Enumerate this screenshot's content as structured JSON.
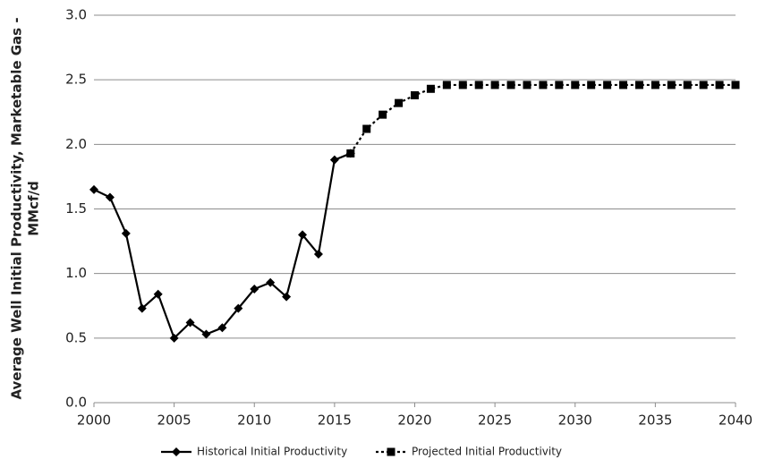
{
  "chart_data": {
    "type": "line",
    "ylabel": [
      "Average Well Initial Productivity, Marketable Gas -",
      "MMcf/d"
    ],
    "xlim": [
      2000,
      2040
    ],
    "xticks": [
      2000,
      2005,
      2010,
      2015,
      2020,
      2025,
      2030,
      2035,
      2040
    ],
    "ylim": [
      0,
      3
    ],
    "yticks": [
      {
        "value": 0,
        "label": "0.0"
      },
      {
        "value": 0.5,
        "label": "0.5"
      },
      {
        "value": 1,
        "label": "1.0"
      },
      {
        "value": 1.5,
        "label": "1.5"
      },
      {
        "value": 2,
        "label": "2.0"
      },
      {
        "value": 2.5,
        "label": "2.5"
      },
      {
        "value": 3,
        "label": "3.0"
      }
    ],
    "grid": true,
    "legend": "bottom",
    "series": [
      {
        "name": "Historical Initial Productivity",
        "color": "#000000",
        "dash": "solid",
        "marker": "diamond",
        "x": [
          2000,
          2001,
          2002,
          2003,
          2004,
          2005,
          2006,
          2007,
          2008,
          2009,
          2010,
          2011,
          2012,
          2013,
          2014,
          2015,
          2016
        ],
        "values": [
          1.65,
          1.59,
          1.31,
          0.73,
          0.84,
          0.5,
          0.62,
          0.53,
          0.58,
          0.73,
          0.88,
          0.93,
          0.82,
          1.3,
          1.15,
          1.88,
          1.93
        ]
      },
      {
        "name": "Projected Initial Productivity",
        "color": "#000000",
        "dash": "dotted",
        "marker": "square",
        "x": [
          2016,
          2017,
          2018,
          2019,
          2020,
          2021,
          2022,
          2023,
          2024,
          2025,
          2026,
          2027,
          2028,
          2029,
          2030,
          2031,
          2032,
          2033,
          2034,
          2035,
          2036,
          2037,
          2038,
          2039,
          2040
        ],
        "values": [
          1.93,
          2.12,
          2.23,
          2.32,
          2.38,
          2.43,
          2.46,
          2.46,
          2.46,
          2.46,
          2.46,
          2.46,
          2.46,
          2.46,
          2.46,
          2.46,
          2.46,
          2.46,
          2.46,
          2.46,
          2.46,
          2.46,
          2.46,
          2.46,
          2.46
        ]
      }
    ]
  }
}
